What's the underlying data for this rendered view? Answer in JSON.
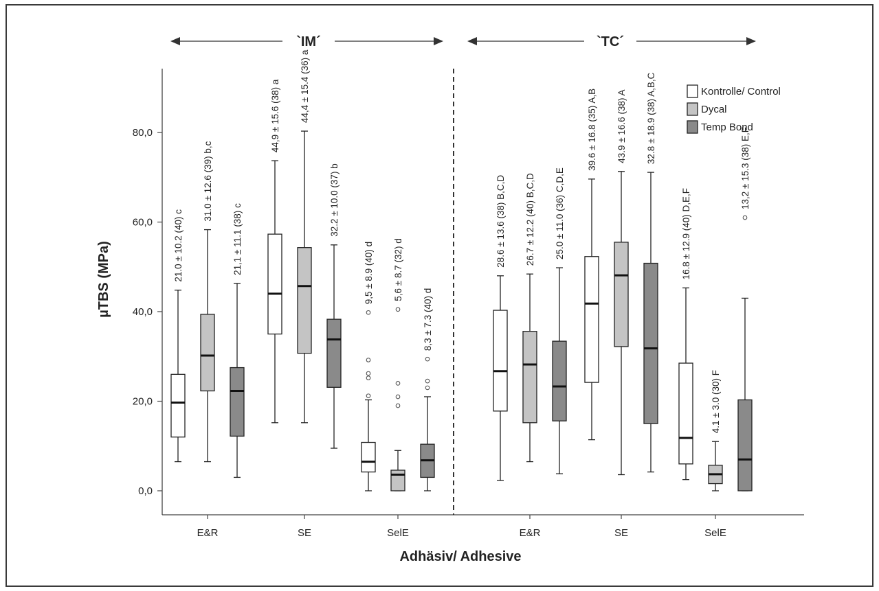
{
  "chart_data": {
    "type": "boxplot",
    "xlabel": "Adhäsiv/ Adhesive",
    "ylabel": "µTBS (MPa)",
    "ylim": [
      -5,
      95
    ],
    "yticks": [
      "0,0",
      "20,0",
      "40,0",
      "60,0",
      "80,0"
    ],
    "ytick_values": [
      0,
      20,
      40,
      60,
      80
    ],
    "groups": [
      {
        "label": "`IM´",
        "categories": [
          "E&R",
          "SE",
          "SelE"
        ]
      },
      {
        "label": "`TC´",
        "categories": [
          "E&R",
          "SE",
          "SelE"
        ]
      }
    ],
    "legend": [
      {
        "name": "Kontrolle/ Control",
        "color": "#ffffff"
      },
      {
        "name": "Dycal",
        "color": "#c4c4c4"
      },
      {
        "name": "Temp Bond",
        "color": "#8a8a8a"
      }
    ],
    "boxes": [
      {
        "group": 0,
        "category": 0,
        "series": 0,
        "min": 6.5,
        "q1": 12,
        "median": 19.7,
        "q3": 26,
        "max": 44.8,
        "outliers": [],
        "label": "21.0 ± 10.2 (40) c"
      },
      {
        "group": 0,
        "category": 0,
        "series": 1,
        "min": 6.5,
        "q1": 22.3,
        "median": 30.2,
        "q3": 39.4,
        "max": 58.3,
        "outliers": [],
        "label": "31.0 ± 12.6 (39) b,c"
      },
      {
        "group": 0,
        "category": 0,
        "series": 2,
        "min": 3,
        "q1": 12.2,
        "median": 22.3,
        "q3": 27.5,
        "max": 46.3,
        "outliers": [],
        "label": "21,1 ± 11.1 (38) c"
      },
      {
        "group": 0,
        "category": 1,
        "series": 0,
        "min": 15.2,
        "q1": 35,
        "median": 44,
        "q3": 57.3,
        "max": 73.7,
        "outliers": [],
        "label": "44,9 ± 15.6 (38) a"
      },
      {
        "group": 0,
        "category": 1,
        "series": 1,
        "min": 15.2,
        "q1": 30.7,
        "median": 45.7,
        "q3": 54.3,
        "max": 80.3,
        "outliers": [],
        "label": "44,4 ± 15.4 (36) a"
      },
      {
        "group": 0,
        "category": 1,
        "series": 2,
        "min": 9.5,
        "q1": 23.1,
        "median": 33.8,
        "q3": 38.3,
        "max": 54.9,
        "outliers": [],
        "label": "32.2 ± 10.0 (37) b"
      },
      {
        "group": 0,
        "category": 2,
        "series": 0,
        "min": 0,
        "q1": 4.2,
        "median": 6.5,
        "q3": 10.8,
        "max": 20.3,
        "outliers": [
          21.2,
          25.2,
          26.2,
          29.2,
          39.8
        ],
        "label": "9,5 ± 8.9 (40) d"
      },
      {
        "group": 0,
        "category": 2,
        "series": 1,
        "min": 0,
        "q1": 0,
        "median": 3.6,
        "q3": 4.6,
        "max": 9,
        "outliers": [
          19,
          21,
          24,
          40.5
        ],
        "label": "5,6 ± 8.7 (32) d"
      },
      {
        "group": 0,
        "category": 2,
        "series": 2,
        "min": 0,
        "q1": 3,
        "median": 6.8,
        "q3": 10.4,
        "max": 21,
        "outliers": [
          23,
          24.5,
          29.4
        ],
        "label": "8,3 ± 7.3 (40) d"
      },
      {
        "group": 1,
        "category": 0,
        "series": 0,
        "min": 2.3,
        "q1": 17.8,
        "median": 26.7,
        "q3": 40.3,
        "max": 48,
        "outliers": [],
        "label": "28.6 ± 13.6 (38) B,C,D"
      },
      {
        "group": 1,
        "category": 0,
        "series": 1,
        "min": 6.5,
        "q1": 15.2,
        "median": 28.2,
        "q3": 35.6,
        "max": 48.4,
        "outliers": [],
        "label": "26.7 ± 12.2 (40) B,C,D"
      },
      {
        "group": 1,
        "category": 0,
        "series": 2,
        "min": 3.8,
        "q1": 15.6,
        "median": 23.3,
        "q3": 33.4,
        "max": 49.8,
        "outliers": [],
        "label": "25.0 ± 11.0 (36) C,D,E"
      },
      {
        "group": 1,
        "category": 1,
        "series": 0,
        "min": 11.4,
        "q1": 24.2,
        "median": 41.8,
        "q3": 52.3,
        "max": 69.6,
        "outliers": [],
        "label": "39.6 ± 16.8 (35) A,B"
      },
      {
        "group": 1,
        "category": 1,
        "series": 1,
        "min": 3.6,
        "q1": 32.2,
        "median": 48.1,
        "q3": 55.5,
        "max": 71.3,
        "outliers": [],
        "label": "43.9 ± 16.6 (38) A"
      },
      {
        "group": 1,
        "category": 1,
        "series": 2,
        "min": 4.2,
        "q1": 15,
        "median": 31.8,
        "q3": 50.8,
        "max": 71.1,
        "outliers": [],
        "label": "32.8 ± 18.9 (38) A,B,C"
      },
      {
        "group": 1,
        "category": 2,
        "series": 0,
        "min": 2.5,
        "q1": 6,
        "median": 11.8,
        "q3": 28.5,
        "max": 45.3,
        "outliers": [],
        "label": "16.8 ± 12.9 (40) D,E,F"
      },
      {
        "group": 1,
        "category": 2,
        "series": 1,
        "min": 0,
        "q1": 1.6,
        "median": 3.7,
        "q3": 5.7,
        "max": 11,
        "outliers": [],
        "label": "4.1 ± 3.0 (30) F"
      },
      {
        "group": 1,
        "category": 2,
        "series": 2,
        "min": 0,
        "q1": 0,
        "median": 7,
        "q3": 20.3,
        "max": 43,
        "outliers": [
          61
        ],
        "label": "13,2 ± 15.3 (38) E,F"
      }
    ]
  }
}
